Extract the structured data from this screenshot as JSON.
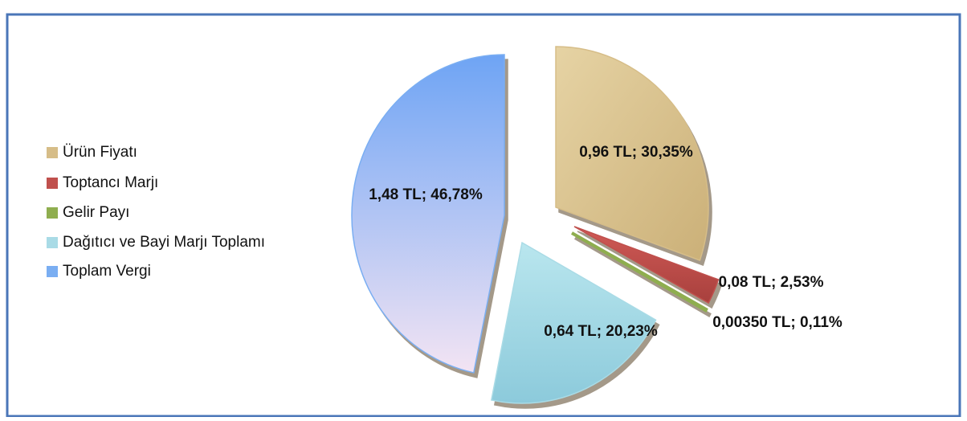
{
  "chart_data": {
    "type": "pie",
    "categories": [
      "Ürün Fiyatı",
      "Toptancı Marjı",
      "Gelir Payı",
      "Dağıtıcı ve Bayi Marjı Toplamı",
      "Toplam Vergi"
    ],
    "values": [
      30.35,
      2.53,
      0.11,
      20.23,
      46.78
    ],
    "value_labels": [
      "0,96 TL; 30,35%",
      "0,08 TL; 2,53%",
      "0,00350 TL; 0,11%",
      "0,64 TL; 20,23%",
      "1,48 TL; 46,78%"
    ],
    "colors": [
      "#d6bd88",
      "#c0504d",
      "#8fae4f",
      "#a9dbe6",
      "#7aaef2"
    ],
    "legend": "left"
  }
}
